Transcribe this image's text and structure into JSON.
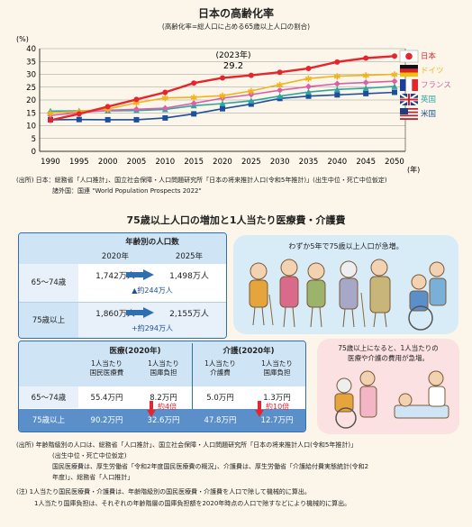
{
  "chart_data": {
    "type": "line",
    "title": "日本の高齢化率",
    "subtitle": "(高齢化率=総人口に占める65歳以上人口の割合)",
    "ylabel": "(%)",
    "xlabel": "(年)",
    "ylim": [
      0,
      40
    ],
    "yticks": [
      0,
      5,
      10,
      15,
      20,
      25,
      30,
      35,
      40
    ],
    "x": [
      1990,
      1995,
      2000,
      2005,
      2010,
      2015,
      2020,
      2025,
      2030,
      2035,
      2040,
      2045,
      2050
    ],
    "annotation": {
      "year_label": "(2023年)",
      "value_label": "29.2"
    },
    "series": [
      {
        "name": "日本",
        "color": "#e5262f",
        "values": [
          12.1,
          14.6,
          17.4,
          20.2,
          23.0,
          26.6,
          28.6,
          29.6,
          30.8,
          32.3,
          34.8,
          36.3,
          37.1
        ]
      },
      {
        "name": "ドイツ",
        "color": "#f2b31b",
        "values": [
          15.0,
          15.5,
          16.5,
          18.9,
          20.8,
          21.1,
          21.7,
          23.5,
          26.0,
          28.4,
          29.3,
          29.6,
          30.0
        ]
      },
      {
        "name": "フランス",
        "color": "#d960a8",
        "values": [
          14.0,
          15.1,
          16.0,
          16.4,
          16.8,
          18.7,
          20.7,
          22.1,
          23.8,
          25.2,
          26.3,
          26.8,
          27.3
        ]
      },
      {
        "name": "英国",
        "color": "#2ea6a0",
        "values": [
          15.7,
          15.8,
          15.8,
          15.9,
          16.3,
          17.8,
          18.6,
          19.7,
          21.5,
          23.1,
          24.1,
          24.6,
          25.3
        ]
      },
      {
        "name": "米国",
        "color": "#1d4f9c",
        "values": [
          12.3,
          12.4,
          12.3,
          12.3,
          13.0,
          14.6,
          16.6,
          18.4,
          20.6,
          21.5,
          22.0,
          22.5,
          23.0
        ]
      }
    ]
  },
  "source1": [
    "(出所) 日本：総務省「人口推計」、国立社会保障・人口問題研究所「日本の将来推計人口(令和5年推計)」(出生中位・死亡中位仮定)",
    "諸外国：国連 \"World Population Prospects 2022\""
  ],
  "section2_title": "75歳以上人口の増加と1人当たり医療費・介護費",
  "table1": {
    "header": "年齢別の人口数",
    "col_2020": "2020年",
    "col_2025": "2025年",
    "rows": [
      {
        "label": "65～74歳",
        "v2020": "1,742万人",
        "v2025": "1,498万人",
        "diff": "▲約244万人"
      },
      {
        "label": "75歳以上",
        "v2020": "1,860万人",
        "v2025": "2,155万人",
        "diff": "+約294万人"
      }
    ]
  },
  "bubble1_text": "わずか5年で75歳以上人口が急増。",
  "table2": {
    "group_medical": "医療(2020年)",
    "group_care": "介護(2020年)",
    "sub_cols": [
      "1人当たり\n国民医療費",
      "1人当たり\n国庫負担",
      "1人当たり\n介護費",
      "1人当たり\n国庫負担"
    ],
    "rows": [
      {
        "label": "65～74歳",
        "cells": [
          "55.4万円",
          "8.2万円",
          "5.0万円",
          "1.3万円"
        ]
      },
      {
        "label": "75歳以上",
        "cells": [
          "90.2万円",
          "32.6万円",
          "47.8万円",
          "12.7万円"
        ]
      }
    ],
    "ratio_medical": "約4倍",
    "ratio_care": "約10倍"
  },
  "bubble2_text": [
    "75歳以上になると、1人当たりの",
    "医療や介護の費用が急増。"
  ],
  "notes": [
    "(出所) 年齢階級別の人口は、総務省「人口推計」、国立社会保障・人口問題研究所「日本の将来推計人口(令和5年推計)」",
    "(出生中位・死亡中位仮定)",
    "国民医療費は、厚生労働省「令和2年度国民医療費の概況」、介護費は、厚生労働省「介護給付費実態統計(令和2",
    "年度)」、総務省「人口推計」",
    "(注) 1人当たり国民医療費・介護費は、年齢階級別の国民医療費・介護費を人口で除して機械的に算出。",
    "1人当たり国庫負担は、それぞれの年齢階層の国庫負担額を2020年時点の人口で除すなどにより機械的に算出。"
  ]
}
